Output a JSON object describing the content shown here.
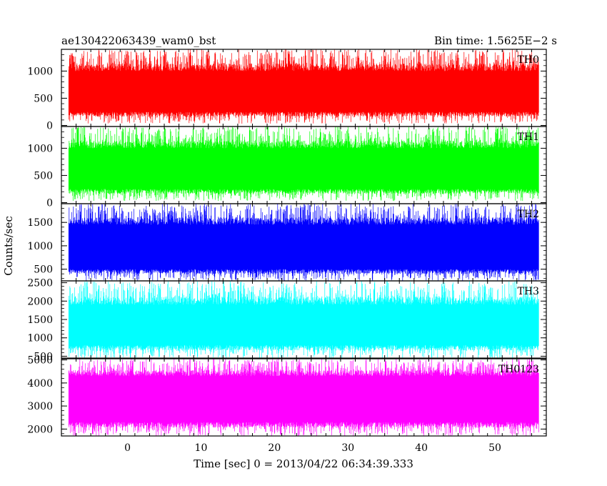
{
  "chart_data": {
    "type": "line",
    "title_left": "ae130422063439_wam0_bst",
    "title_right": "Bin time: 1.5625E−2 s",
    "xlabel": "Time [sec] 0 = 2013/04/22 06:34:39.333",
    "ylabel": "Counts/sec",
    "xlim": [
      -9,
      57
    ],
    "x_ticks": [
      0,
      10,
      20,
      30,
      40,
      50
    ],
    "x_data_range": [
      -8,
      56
    ],
    "grid": false,
    "panels": [
      {
        "name": "TH0",
        "color": "#ff0000",
        "ylim": [
          -20,
          1400
        ],
        "y_ticks": [
          0,
          500,
          1000
        ],
        "signal_range": [
          30,
          1400
        ],
        "core_range": [
          250,
          1000
        ]
      },
      {
        "name": "TH1",
        "color": "#00ff00",
        "ylim": [
          -20,
          1400
        ],
        "y_ticks": [
          0,
          500,
          1000
        ],
        "signal_range": [
          30,
          1400
        ],
        "core_range": [
          250,
          1000
        ]
      },
      {
        "name": "TH2",
        "color": "#0000ff",
        "ylim": [
          250,
          1900
        ],
        "y_ticks": [
          500,
          1000,
          1500
        ],
        "signal_range": [
          250,
          1900
        ],
        "core_range": [
          500,
          1450
        ]
      },
      {
        "name": "TH3",
        "color": "#00ffff",
        "ylim": [
          450,
          2550
        ],
        "y_ticks": [
          500,
          1000,
          1500,
          2000,
          2500
        ],
        "signal_range": [
          450,
          2550
        ],
        "core_range": [
          800,
          1900
        ]
      },
      {
        "name": "TH0123",
        "color": "#ff00ff",
        "ylim": [
          1700,
          5050
        ],
        "y_ticks": [
          2000,
          3000,
          4000,
          5000
        ],
        "signal_range": [
          1700,
          5050
        ],
        "core_range": [
          2300,
          4300
        ]
      }
    ]
  }
}
